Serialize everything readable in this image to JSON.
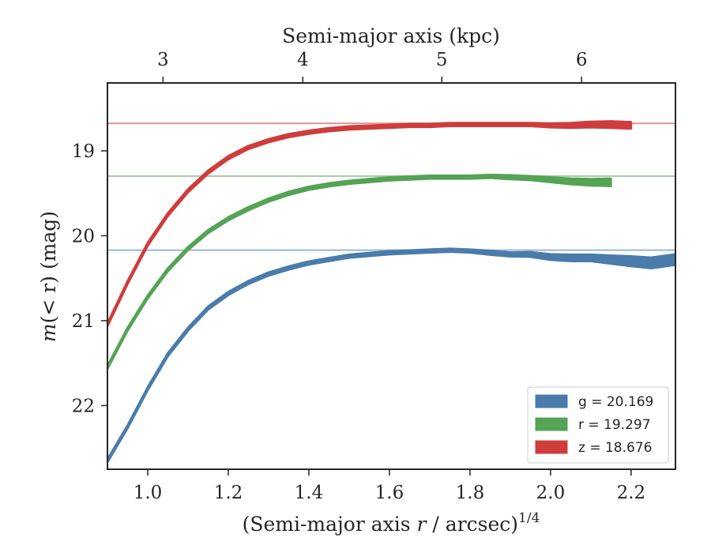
{
  "chart_data": {
    "type": "line",
    "xlabel_prefix": "(Semi-major axis ",
    "xlabel_var": "r",
    "xlabel_suffix": " / arcsec)",
    "xlabel_sup": "1/4",
    "ylabel_prefix": "m",
    "ylabel_suffix": "(< r) (mag)",
    "top_xlabel": "Semi-major axis (kpc)",
    "xlim": [
      0.9,
      2.31
    ],
    "ylim": [
      22.75,
      18.2
    ],
    "y_inverted": true,
    "x_ticks": [
      "1.0",
      "1.2",
      "1.4",
      "1.6",
      "1.8",
      "2.0",
      "2.2"
    ],
    "x_tick_values": [
      1.0,
      1.2,
      1.4,
      1.6,
      1.8,
      2.0,
      2.2
    ],
    "y_ticks": [
      "19",
      "20",
      "21",
      "22"
    ],
    "y_tick_values": [
      19,
      20,
      21,
      22
    ],
    "top_ticks": [
      "3",
      "4",
      "5",
      "6"
    ],
    "top_tick_positions_x": [
      1.038,
      1.385,
      1.73,
      2.077
    ],
    "legend_placement": "lower-right",
    "series": [
      {
        "band": "g",
        "legend": "g = 20.169",
        "color": "#4a7cab",
        "asymptote": 20.169,
        "x": [
          0.9,
          0.95,
          1.0,
          1.05,
          1.1,
          1.15,
          1.2,
          1.25,
          1.3,
          1.35,
          1.4,
          1.45,
          1.5,
          1.55,
          1.6,
          1.65,
          1.7,
          1.75,
          1.8,
          1.85,
          1.9,
          1.95,
          2.0,
          2.05,
          2.1,
          2.15,
          2.2,
          2.25,
          2.31
        ],
        "y": [
          22.65,
          22.25,
          21.8,
          21.4,
          21.1,
          20.85,
          20.68,
          20.55,
          20.45,
          20.38,
          20.32,
          20.28,
          20.24,
          20.22,
          20.2,
          20.19,
          20.18,
          20.17,
          20.18,
          20.2,
          20.22,
          20.22,
          20.25,
          20.26,
          20.26,
          20.28,
          20.3,
          20.32,
          20.28
        ],
        "band_width": [
          0.04,
          0.04,
          0.04,
          0.04,
          0.04,
          0.04,
          0.04,
          0.04,
          0.04,
          0.04,
          0.04,
          0.04,
          0.04,
          0.04,
          0.04,
          0.04,
          0.04,
          0.04,
          0.04,
          0.05,
          0.05,
          0.06,
          0.07,
          0.08,
          0.08,
          0.1,
          0.12,
          0.13,
          0.13
        ]
      },
      {
        "band": "r",
        "legend": "r = 19.297",
        "color": "#55a355",
        "asymptote": 19.297,
        "x": [
          0.9,
          0.95,
          1.0,
          1.05,
          1.1,
          1.15,
          1.2,
          1.25,
          1.3,
          1.35,
          1.4,
          1.45,
          1.5,
          1.55,
          1.6,
          1.65,
          1.7,
          1.75,
          1.8,
          1.85,
          1.9,
          1.95,
          2.0,
          2.05,
          2.1,
          2.15
        ],
        "y": [
          21.55,
          21.1,
          20.72,
          20.4,
          20.15,
          19.95,
          19.8,
          19.68,
          19.58,
          19.5,
          19.44,
          19.4,
          19.37,
          19.35,
          19.33,
          19.32,
          19.31,
          19.31,
          19.31,
          19.3,
          19.31,
          19.32,
          19.34,
          19.36,
          19.37,
          19.37
        ],
        "band_width": [
          0.04,
          0.04,
          0.04,
          0.04,
          0.04,
          0.04,
          0.04,
          0.04,
          0.04,
          0.04,
          0.04,
          0.04,
          0.04,
          0.04,
          0.04,
          0.04,
          0.04,
          0.04,
          0.04,
          0.04,
          0.05,
          0.05,
          0.06,
          0.07,
          0.08,
          0.09
        ]
      },
      {
        "band": "z",
        "legend": "z = 18.676",
        "color": "#cf3c3c",
        "asymptote": 18.676,
        "x": [
          0.9,
          0.95,
          1.0,
          1.05,
          1.1,
          1.15,
          1.2,
          1.25,
          1.3,
          1.35,
          1.4,
          1.45,
          1.5,
          1.55,
          1.6,
          1.65,
          1.7,
          1.75,
          1.8,
          1.85,
          1.9,
          1.95,
          2.0,
          2.05,
          2.1,
          2.15,
          2.2
        ],
        "y": [
          21.05,
          20.55,
          20.1,
          19.75,
          19.47,
          19.25,
          19.08,
          18.96,
          18.88,
          18.82,
          18.78,
          18.75,
          18.73,
          18.72,
          18.71,
          18.7,
          18.7,
          18.69,
          18.69,
          18.69,
          18.69,
          18.69,
          18.7,
          18.7,
          18.69,
          18.69,
          18.7
        ],
        "band_width": [
          0.04,
          0.04,
          0.04,
          0.04,
          0.04,
          0.04,
          0.04,
          0.04,
          0.04,
          0.04,
          0.04,
          0.04,
          0.04,
          0.04,
          0.04,
          0.04,
          0.04,
          0.04,
          0.04,
          0.04,
          0.04,
          0.04,
          0.05,
          0.06,
          0.07,
          0.08,
          0.08
        ]
      }
    ]
  }
}
